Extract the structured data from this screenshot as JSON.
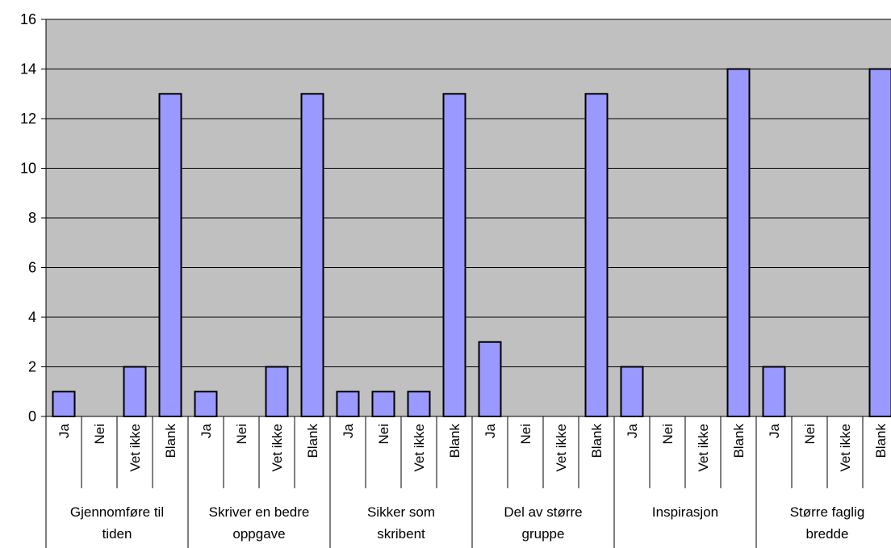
{
  "chart_data": {
    "type": "bar",
    "title": "",
    "xlabel": "",
    "ylabel": "",
    "ylim": [
      0,
      16
    ],
    "yticks": [
      "0",
      "2",
      "4",
      "6",
      "8",
      "10",
      "12",
      "14",
      "16"
    ],
    "grid": true,
    "legend": "none",
    "colors": {
      "plot_background": "#c0c0c0",
      "bar_fill": "#9999ff",
      "bar_stroke": "#000000",
      "gridline": "#000000"
    },
    "subcategories": [
      "Ja",
      "Nei",
      "Vet ikke",
      "Blank"
    ],
    "groups": [
      {
        "label": [
          "Gjennomføre til",
          "tiden"
        ],
        "values": [
          1,
          0,
          2,
          13
        ]
      },
      {
        "label": [
          "Skriver en bedre",
          "oppgave"
        ],
        "values": [
          1,
          0,
          2,
          13
        ]
      },
      {
        "label": [
          "Sikker som",
          "skribent"
        ],
        "values": [
          1,
          1,
          1,
          13
        ]
      },
      {
        "label": [
          "Del av større",
          "gruppe"
        ],
        "values": [
          3,
          0,
          0,
          13
        ]
      },
      {
        "label": [
          "Inspirasjon"
        ],
        "values": [
          2,
          0,
          0,
          14
        ]
      },
      {
        "label": [
          "Større faglig",
          "bredde"
        ],
        "values": [
          2,
          0,
          0,
          14
        ]
      }
    ]
  }
}
